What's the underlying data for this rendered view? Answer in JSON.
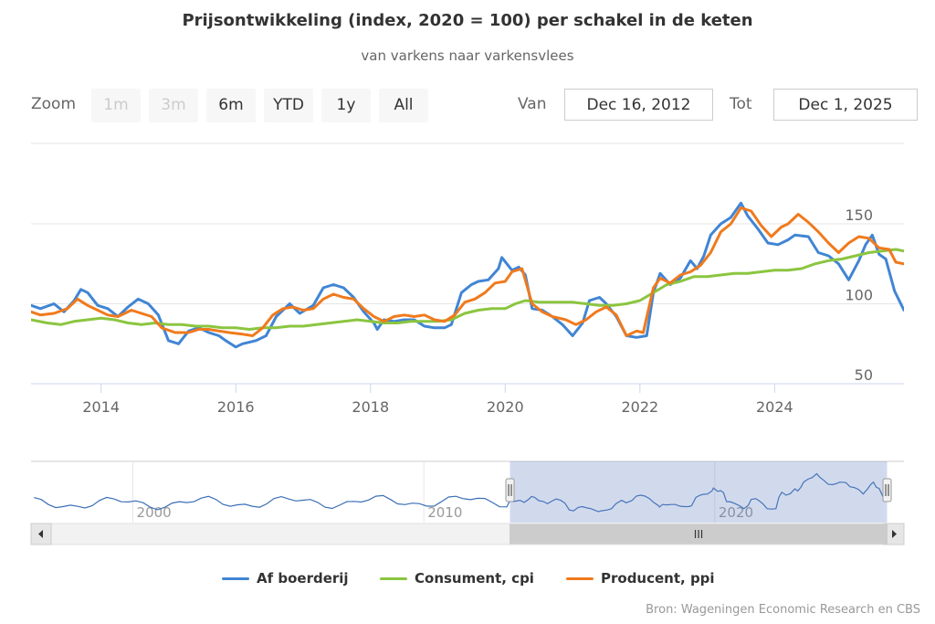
{
  "chart_data": {
    "type": "line",
    "title": "Prijsontwikkeling (index, 2020 = 100) per schakel in de keten",
    "subtitle": "van varkens naar varkensvlees",
    "x_unit": "year",
    "xlim": [
      2012.96,
      2025.92
    ],
    "ylim": [
      50,
      175
    ],
    "y_ticks": [
      "50",
      "100",
      "150"
    ],
    "x_ticks": [
      "2014",
      "2016",
      "2018",
      "2020",
      "2022",
      "2024"
    ],
    "grid": true,
    "legend_position": "bottom-center",
    "series": [
      {
        "name": "Af boerderij",
        "color": "#4185d4",
        "points": [
          [
            2012.96,
            99
          ],
          [
            2013.1,
            97
          ],
          [
            2013.3,
            100
          ],
          [
            2013.45,
            95
          ],
          [
            2013.6,
            102
          ],
          [
            2013.7,
            109
          ],
          [
            2013.8,
            107
          ],
          [
            2013.95,
            99
          ],
          [
            2014.1,
            97
          ],
          [
            2014.25,
            92
          ],
          [
            2014.4,
            98
          ],
          [
            2014.55,
            103
          ],
          [
            2014.7,
            100
          ],
          [
            2014.85,
            93
          ],
          [
            2015.0,
            77
          ],
          [
            2015.15,
            75
          ],
          [
            2015.3,
            83
          ],
          [
            2015.45,
            85
          ],
          [
            2015.6,
            82
          ],
          [
            2015.75,
            80
          ],
          [
            2015.85,
            77
          ],
          [
            2016.0,
            73
          ],
          [
            2016.1,
            75
          ],
          [
            2016.3,
            77
          ],
          [
            2016.45,
            80
          ],
          [
            2016.6,
            92
          ],
          [
            2016.8,
            100
          ],
          [
            2016.95,
            94
          ],
          [
            2017.15,
            99
          ],
          [
            2017.3,
            110
          ],
          [
            2017.45,
            112
          ],
          [
            2017.6,
            110
          ],
          [
            2017.75,
            104
          ],
          [
            2017.9,
            95
          ],
          [
            2018.05,
            88
          ],
          [
            2018.1,
            84
          ],
          [
            2018.2,
            90
          ],
          [
            2018.35,
            89
          ],
          [
            2018.5,
            90
          ],
          [
            2018.65,
            90
          ],
          [
            2018.8,
            86
          ],
          [
            2018.95,
            85
          ],
          [
            2019.1,
            85
          ],
          [
            2019.2,
            87
          ],
          [
            2019.35,
            107
          ],
          [
            2019.5,
            112
          ],
          [
            2019.6,
            114
          ],
          [
            2019.75,
            115
          ],
          [
            2019.9,
            122
          ],
          [
            2019.95,
            129
          ],
          [
            2020.1,
            121
          ],
          [
            2020.2,
            123
          ],
          [
            2020.3,
            118
          ],
          [
            2020.4,
            97
          ],
          [
            2020.55,
            96
          ],
          [
            2020.7,
            92
          ],
          [
            2020.85,
            87
          ],
          [
            2021.0,
            80
          ],
          [
            2021.15,
            88
          ],
          [
            2021.25,
            102
          ],
          [
            2021.4,
            104
          ],
          [
            2021.5,
            100
          ],
          [
            2021.65,
            92
          ],
          [
            2021.8,
            80
          ],
          [
            2021.95,
            79
          ],
          [
            2022.1,
            80
          ],
          [
            2022.2,
            107
          ],
          [
            2022.3,
            119
          ],
          [
            2022.45,
            112
          ],
          [
            2022.6,
            116
          ],
          [
            2022.75,
            127
          ],
          [
            2022.85,
            122
          ],
          [
            2022.95,
            130
          ],
          [
            2023.05,
            143
          ],
          [
            2023.2,
            150
          ],
          [
            2023.35,
            154
          ],
          [
            2023.5,
            163
          ],
          [
            2023.6,
            155
          ],
          [
            2023.75,
            147
          ],
          [
            2023.9,
            138
          ],
          [
            2024.05,
            137
          ],
          [
            2024.2,
            140
          ],
          [
            2024.3,
            143
          ],
          [
            2024.5,
            142
          ],
          [
            2024.65,
            132
          ],
          [
            2024.8,
            130
          ],
          [
            2024.95,
            125
          ],
          [
            2025.1,
            115
          ],
          [
            2025.25,
            127
          ],
          [
            2025.35,
            137
          ],
          [
            2025.45,
            143
          ],
          [
            2025.55,
            131
          ],
          [
            2025.65,
            128
          ],
          [
            2025.78,
            108
          ],
          [
            2025.92,
            96
          ]
        ]
      },
      {
        "name": "Consument, cpi",
        "color": "#8bc540",
        "points": [
          [
            2012.96,
            90
          ],
          [
            2013.2,
            88
          ],
          [
            2013.4,
            87
          ],
          [
            2013.6,
            89
          ],
          [
            2013.8,
            90
          ],
          [
            2014.0,
            91
          ],
          [
            2014.2,
            90
          ],
          [
            2014.4,
            88
          ],
          [
            2014.6,
            87
          ],
          [
            2014.8,
            88
          ],
          [
            2015.0,
            87
          ],
          [
            2015.2,
            87
          ],
          [
            2015.4,
            86
          ],
          [
            2015.6,
            86
          ],
          [
            2015.8,
            85
          ],
          [
            2016.0,
            85
          ],
          [
            2016.2,
            84
          ],
          [
            2016.4,
            85
          ],
          [
            2016.6,
            85
          ],
          [
            2016.8,
            86
          ],
          [
            2017.0,
            86
          ],
          [
            2017.2,
            87
          ],
          [
            2017.4,
            88
          ],
          [
            2017.6,
            89
          ],
          [
            2017.8,
            90
          ],
          [
            2018.0,
            89
          ],
          [
            2018.2,
            88
          ],
          [
            2018.4,
            88
          ],
          [
            2018.6,
            89
          ],
          [
            2018.8,
            89
          ],
          [
            2019.0,
            89
          ],
          [
            2019.2,
            90
          ],
          [
            2019.4,
            94
          ],
          [
            2019.6,
            96
          ],
          [
            2019.8,
            97
          ],
          [
            2020.0,
            97
          ],
          [
            2020.15,
            100
          ],
          [
            2020.3,
            102
          ],
          [
            2020.5,
            101
          ],
          [
            2020.7,
            101
          ],
          [
            2020.9,
            101
          ],
          [
            2021.0,
            101
          ],
          [
            2021.2,
            100
          ],
          [
            2021.4,
            99
          ],
          [
            2021.6,
            99
          ],
          [
            2021.8,
            100
          ],
          [
            2022.0,
            102
          ],
          [
            2022.2,
            107
          ],
          [
            2022.4,
            112
          ],
          [
            2022.6,
            114
          ],
          [
            2022.8,
            117
          ],
          [
            2023.0,
            117
          ],
          [
            2023.2,
            118
          ],
          [
            2023.4,
            119
          ],
          [
            2023.6,
            119
          ],
          [
            2023.8,
            120
          ],
          [
            2024.0,
            121
          ],
          [
            2024.2,
            121
          ],
          [
            2024.4,
            122
          ],
          [
            2024.6,
            125
          ],
          [
            2024.8,
            127
          ],
          [
            2025.0,
            128
          ],
          [
            2025.2,
            130
          ],
          [
            2025.4,
            132
          ],
          [
            2025.6,
            133
          ],
          [
            2025.8,
            134
          ],
          [
            2025.92,
            133
          ]
        ]
      },
      {
        "name": "Producent, ppi",
        "color": "#f07a1d",
        "points": [
          [
            2012.96,
            95
          ],
          [
            2013.1,
            93
          ],
          [
            2013.3,
            94
          ],
          [
            2013.5,
            97
          ],
          [
            2013.65,
            103
          ],
          [
            2013.8,
            99
          ],
          [
            2013.95,
            96
          ],
          [
            2014.1,
            93
          ],
          [
            2014.25,
            92
          ],
          [
            2014.45,
            96
          ],
          [
            2014.6,
            94
          ],
          [
            2014.75,
            92
          ],
          [
            2014.9,
            85
          ],
          [
            2015.1,
            82
          ],
          [
            2015.3,
            82
          ],
          [
            2015.45,
            84
          ],
          [
            2015.6,
            84
          ],
          [
            2015.75,
            83
          ],
          [
            2015.9,
            82
          ],
          [
            2016.1,
            81
          ],
          [
            2016.25,
            80
          ],
          [
            2016.4,
            85
          ],
          [
            2016.55,
            93
          ],
          [
            2016.7,
            97
          ],
          [
            2016.85,
            98
          ],
          [
            2017.0,
            96
          ],
          [
            2017.15,
            97
          ],
          [
            2017.3,
            103
          ],
          [
            2017.45,
            106
          ],
          [
            2017.6,
            104
          ],
          [
            2017.75,
            103
          ],
          [
            2017.9,
            97
          ],
          [
            2018.05,
            92
          ],
          [
            2018.2,
            89
          ],
          [
            2018.35,
            92
          ],
          [
            2018.5,
            93
          ],
          [
            2018.65,
            92
          ],
          [
            2018.8,
            93
          ],
          [
            2018.95,
            90
          ],
          [
            2019.1,
            89
          ],
          [
            2019.25,
            93
          ],
          [
            2019.4,
            101
          ],
          [
            2019.55,
            103
          ],
          [
            2019.7,
            107
          ],
          [
            2019.85,
            113
          ],
          [
            2020.0,
            114
          ],
          [
            2020.1,
            120
          ],
          [
            2020.25,
            122
          ],
          [
            2020.4,
            100
          ],
          [
            2020.55,
            95
          ],
          [
            2020.7,
            92
          ],
          [
            2020.9,
            90
          ],
          [
            2021.05,
            87
          ],
          [
            2021.2,
            90
          ],
          [
            2021.35,
            95
          ],
          [
            2021.5,
            98
          ],
          [
            2021.65,
            93
          ],
          [
            2021.8,
            80
          ],
          [
            2021.95,
            83
          ],
          [
            2022.05,
            82
          ],
          [
            2022.2,
            110
          ],
          [
            2022.3,
            116
          ],
          [
            2022.45,
            113
          ],
          [
            2022.6,
            118
          ],
          [
            2022.75,
            120
          ],
          [
            2022.9,
            124
          ],
          [
            2023.05,
            132
          ],
          [
            2023.2,
            145
          ],
          [
            2023.35,
            150
          ],
          [
            2023.5,
            160
          ],
          [
            2023.65,
            158
          ],
          [
            2023.8,
            149
          ],
          [
            2023.95,
            142
          ],
          [
            2024.1,
            148
          ],
          [
            2024.2,
            150
          ],
          [
            2024.35,
            156
          ],
          [
            2024.5,
            151
          ],
          [
            2024.65,
            145
          ],
          [
            2024.8,
            138
          ],
          [
            2024.95,
            132
          ],
          [
            2025.1,
            138
          ],
          [
            2025.25,
            142
          ],
          [
            2025.4,
            141
          ],
          [
            2025.55,
            135
          ],
          [
            2025.7,
            134
          ],
          [
            2025.8,
            126
          ],
          [
            2025.92,
            125
          ]
        ]
      }
    ]
  },
  "header": {
    "zoom_label": "Zoom",
    "buttons": [
      "1m",
      "3m",
      "6m",
      "YTD",
      "1y",
      "All"
    ],
    "from_label": "Van",
    "from_value": "Dec 16, 2012",
    "to_label": "Tot",
    "to_value": "Dec 1, 2025"
  },
  "navigator": {
    "xlim": [
      1996.5,
      2026.5
    ],
    "selected_range": [
      2012.96,
      2025.92
    ],
    "ticks": [
      "2000",
      "2010",
      "2020"
    ],
    "scroll_grip": "III",
    "left_arrow_icon": "arrow-left-icon",
    "right_arrow_icon": "arrow-right-icon",
    "handle_icon": "drag-handle-icon"
  },
  "credits": "Bron: Wageningen Economic Research en CBS"
}
